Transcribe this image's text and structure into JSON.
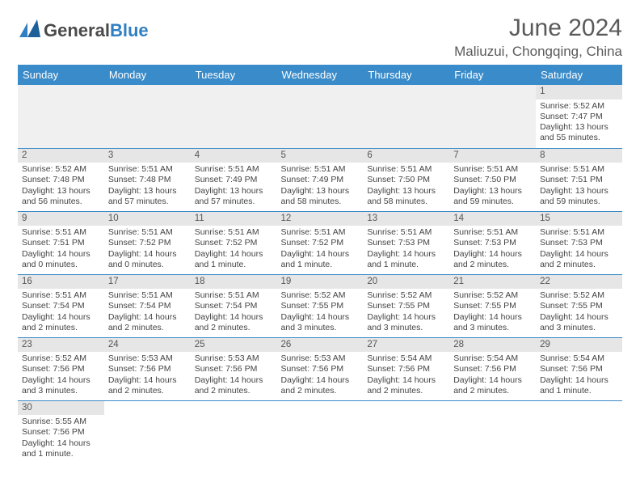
{
  "brand": {
    "text_a": "General",
    "text_b": "Blue"
  },
  "header": {
    "month_title": "June 2024",
    "location": "Maliuzui, Chongqing, China"
  },
  "colors": {
    "header_bg": "#3a8bc9",
    "header_fg": "#ffffff",
    "band_bg": "#e6e6e6",
    "rule": "#3a8bc9",
    "logo_blue": "#2f7fc2",
    "text": "#444444"
  },
  "weekdays": [
    "Sunday",
    "Monday",
    "Tuesday",
    "Wednesday",
    "Thursday",
    "Friday",
    "Saturday"
  ],
  "grid": [
    [
      {
        "blank": true
      },
      {
        "blank": true
      },
      {
        "blank": true
      },
      {
        "blank": true
      },
      {
        "blank": true
      },
      {
        "blank": true
      },
      {
        "n": "1",
        "sunrise": "5:52 AM",
        "sunset": "7:47 PM",
        "daylight": "13 hours and 55 minutes."
      }
    ],
    [
      {
        "n": "2",
        "sunrise": "5:52 AM",
        "sunset": "7:48 PM",
        "daylight": "13 hours and 56 minutes."
      },
      {
        "n": "3",
        "sunrise": "5:51 AM",
        "sunset": "7:48 PM",
        "daylight": "13 hours and 57 minutes."
      },
      {
        "n": "4",
        "sunrise": "5:51 AM",
        "sunset": "7:49 PM",
        "daylight": "13 hours and 57 minutes."
      },
      {
        "n": "5",
        "sunrise": "5:51 AM",
        "sunset": "7:49 PM",
        "daylight": "13 hours and 58 minutes."
      },
      {
        "n": "6",
        "sunrise": "5:51 AM",
        "sunset": "7:50 PM",
        "daylight": "13 hours and 58 minutes."
      },
      {
        "n": "7",
        "sunrise": "5:51 AM",
        "sunset": "7:50 PM",
        "daylight": "13 hours and 59 minutes."
      },
      {
        "n": "8",
        "sunrise": "5:51 AM",
        "sunset": "7:51 PM",
        "daylight": "13 hours and 59 minutes."
      }
    ],
    [
      {
        "n": "9",
        "sunrise": "5:51 AM",
        "sunset": "7:51 PM",
        "daylight": "14 hours and 0 minutes."
      },
      {
        "n": "10",
        "sunrise": "5:51 AM",
        "sunset": "7:52 PM",
        "daylight": "14 hours and 0 minutes."
      },
      {
        "n": "11",
        "sunrise": "5:51 AM",
        "sunset": "7:52 PM",
        "daylight": "14 hours and 1 minute."
      },
      {
        "n": "12",
        "sunrise": "5:51 AM",
        "sunset": "7:52 PM",
        "daylight": "14 hours and 1 minute."
      },
      {
        "n": "13",
        "sunrise": "5:51 AM",
        "sunset": "7:53 PM",
        "daylight": "14 hours and 1 minute."
      },
      {
        "n": "14",
        "sunrise": "5:51 AM",
        "sunset": "7:53 PM",
        "daylight": "14 hours and 2 minutes."
      },
      {
        "n": "15",
        "sunrise": "5:51 AM",
        "sunset": "7:53 PM",
        "daylight": "14 hours and 2 minutes."
      }
    ],
    [
      {
        "n": "16",
        "sunrise": "5:51 AM",
        "sunset": "7:54 PM",
        "daylight": "14 hours and 2 minutes."
      },
      {
        "n": "17",
        "sunrise": "5:51 AM",
        "sunset": "7:54 PM",
        "daylight": "14 hours and 2 minutes."
      },
      {
        "n": "18",
        "sunrise": "5:51 AM",
        "sunset": "7:54 PM",
        "daylight": "14 hours and 2 minutes."
      },
      {
        "n": "19",
        "sunrise": "5:52 AM",
        "sunset": "7:55 PM",
        "daylight": "14 hours and 3 minutes."
      },
      {
        "n": "20",
        "sunrise": "5:52 AM",
        "sunset": "7:55 PM",
        "daylight": "14 hours and 3 minutes."
      },
      {
        "n": "21",
        "sunrise": "5:52 AM",
        "sunset": "7:55 PM",
        "daylight": "14 hours and 3 minutes."
      },
      {
        "n": "22",
        "sunrise": "5:52 AM",
        "sunset": "7:55 PM",
        "daylight": "14 hours and 3 minutes."
      }
    ],
    [
      {
        "n": "23",
        "sunrise": "5:52 AM",
        "sunset": "7:56 PM",
        "daylight": "14 hours and 3 minutes."
      },
      {
        "n": "24",
        "sunrise": "5:53 AM",
        "sunset": "7:56 PM",
        "daylight": "14 hours and 2 minutes."
      },
      {
        "n": "25",
        "sunrise": "5:53 AM",
        "sunset": "7:56 PM",
        "daylight": "14 hours and 2 minutes."
      },
      {
        "n": "26",
        "sunrise": "5:53 AM",
        "sunset": "7:56 PM",
        "daylight": "14 hours and 2 minutes."
      },
      {
        "n": "27",
        "sunrise": "5:54 AM",
        "sunset": "7:56 PM",
        "daylight": "14 hours and 2 minutes."
      },
      {
        "n": "28",
        "sunrise": "5:54 AM",
        "sunset": "7:56 PM",
        "daylight": "14 hours and 2 minutes."
      },
      {
        "n": "29",
        "sunrise": "5:54 AM",
        "sunset": "7:56 PM",
        "daylight": "14 hours and 1 minute."
      }
    ],
    [
      {
        "n": "30",
        "sunrise": "5:55 AM",
        "sunset": "7:56 PM",
        "daylight": "14 hours and 1 minute."
      },
      {
        "blank": true
      },
      {
        "blank": true
      },
      {
        "blank": true
      },
      {
        "blank": true
      },
      {
        "blank": true
      },
      {
        "blank": true
      }
    ]
  ],
  "labels": {
    "sunrise": "Sunrise:",
    "sunset": "Sunset:",
    "daylight": "Daylight:"
  }
}
